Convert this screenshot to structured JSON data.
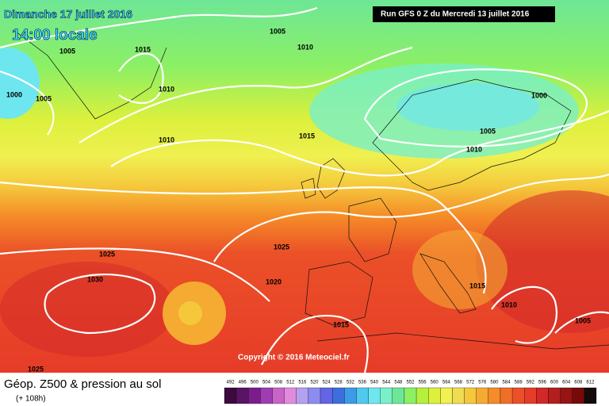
{
  "header": {
    "date": "Dimanche 17 juillet 2016",
    "time": "14:00 locale",
    "run": "Run GFS 0 Z du Mercredi 13 juillet 2016"
  },
  "map": {
    "isobar_labels": [
      "1005",
      "1005",
      "1015",
      "1010",
      "1000",
      "1005",
      "1010",
      "1000",
      "1005",
      "1010",
      "1010",
      "1015",
      "1025",
      "1025",
      "1030",
      "1020",
      "1015",
      "1010",
      "1015",
      "1005",
      "1025"
    ],
    "copyright": "Copyright © 2016 Meteociel.fr"
  },
  "footer": {
    "title": "Géop. Z500 & pression au sol",
    "subtitle": "(+ 108h)"
  },
  "legend": {
    "labels": [
      "492",
      "496",
      "500",
      "504",
      "508",
      "512",
      "516",
      "520",
      "524",
      "528",
      "532",
      "536",
      "540",
      "544",
      "548",
      "552",
      "556",
      "560",
      "564",
      "568",
      "572",
      "576",
      "580",
      "584",
      "588",
      "592",
      "596",
      "600",
      "604",
      "608",
      "612"
    ],
    "colors": [
      "#3c0a3c",
      "#5a1464",
      "#7a1e8c",
      "#a03cb4",
      "#c864c8",
      "#e08cdc",
      "#b4a0f0",
      "#8c8cf0",
      "#6464e6",
      "#3c6edc",
      "#3c9be6",
      "#50c8f0",
      "#6ee6f0",
      "#78f0c8",
      "#6ee696",
      "#8cf064",
      "#b4f03c",
      "#dcf03c",
      "#f0f050",
      "#f0dc50",
      "#f5c83c",
      "#f5aa32",
      "#f58c28",
      "#f06e28",
      "#eb5028",
      "#e63c28",
      "#d22828",
      "#b41e1e",
      "#961414",
      "#780a0a",
      "#140a0a"
    ]
  }
}
